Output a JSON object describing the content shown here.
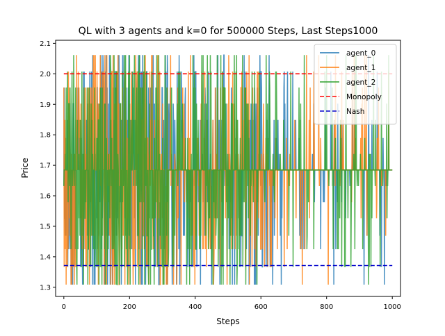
{
  "chart_data": {
    "type": "line",
    "title": "QL with 3 agents and k=0 for 500000 Steps, Last Steps1000",
    "xlabel": "Steps",
    "ylabel": "Price",
    "xlim": [
      -25,
      1025
    ],
    "ylim": [
      1.27,
      2.11
    ],
    "x_ticks": [
      0,
      200,
      400,
      600,
      800,
      1000
    ],
    "x_tick_labels": [
      "0",
      "200",
      "400",
      "600",
      "800",
      "1000"
    ],
    "y_ticks": [
      1.3,
      1.4,
      1.5,
      1.6,
      1.7,
      1.8,
      1.9,
      2.0,
      2.1
    ],
    "y_tick_labels": [
      "1.3",
      "1.4",
      "1.5",
      "1.6",
      "1.7",
      "1.8",
      "1.9",
      "2.0",
      "2.1"
    ],
    "grid": false,
    "legend_position": "top-right",
    "price_levels": [
      1.3087,
      1.3668,
      1.4248,
      1.4689,
      1.5264,
      1.5791,
      1.6321,
      1.6846,
      1.7371,
      1.7895,
      1.8487,
      1.9022,
      1.9548,
      2.0074,
      2.0617
    ],
    "mode_price": 1.6846,
    "series": [
      {
        "name": "agent_0",
        "color": "#1f77b4",
        "style": "solid",
        "x_range": [
          0,
          1000
        ],
        "description_points": [
          [
            0,
            1.6321
          ],
          [
            1000,
            1.6846
          ]
        ]
      },
      {
        "name": "agent_1",
        "color": "#ff7f0e",
        "style": "solid",
        "x_range": [
          0,
          1000
        ],
        "description_points": [
          [
            0,
            1.9548
          ],
          [
            1000,
            1.6846
          ]
        ]
      },
      {
        "name": "agent_2",
        "color": "#2ca02c",
        "style": "solid",
        "x_range": [
          0,
          1000
        ],
        "description_points": [
          [
            0,
            1.6321
          ],
          [
            1000,
            1.6846
          ]
        ]
      },
      {
        "name": "Monopoly",
        "color": "#ff0000",
        "style": "dashed",
        "x": [
          0,
          1000
        ],
        "values": [
          2.0,
          2.0
        ]
      },
      {
        "name": "Nash",
        "color": "#0000cc",
        "style": "dashed",
        "x": [
          0,
          1000
        ],
        "values": [
          1.3713,
          1.3713
        ]
      }
    ]
  }
}
